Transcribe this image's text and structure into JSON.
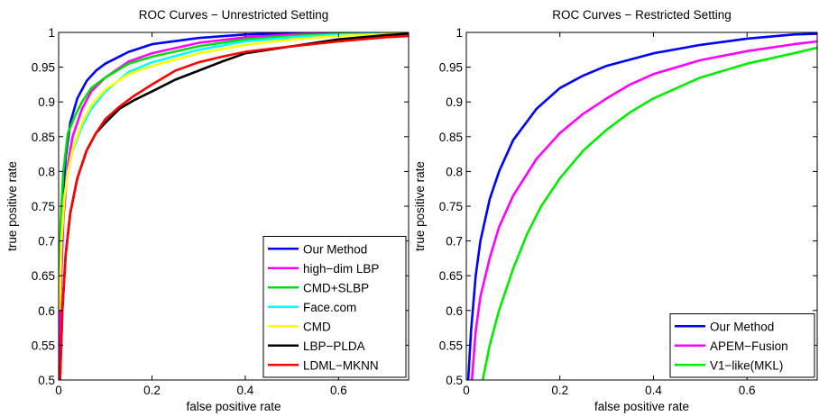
{
  "chart_data": [
    {
      "type": "line",
      "title": "ROC Curves − Unrestricted Setting",
      "xlabel": "false positive rate",
      "ylabel": "true positive rate",
      "xlim": [
        0,
        0.75
      ],
      "ylim": [
        0.5,
        1.0
      ],
      "xticks": [
        0,
        0.2,
        0.4,
        0.6
      ],
      "xtick_labels": [
        "0",
        "0.2",
        "0.4",
        "0.6"
      ],
      "yticks": [
        0.5,
        0.55,
        0.6,
        0.65,
        0.7,
        0.75,
        0.8,
        0.85,
        0.9,
        0.95,
        1.0
      ],
      "ytick_labels": [
        "0.5",
        "0.55",
        "0.6",
        "0.65",
        "0.7",
        "0.75",
        "0.8",
        "0.85",
        "0.9",
        "0.95",
        "1"
      ],
      "grid": false,
      "legend_position": "bottom-right",
      "series": [
        {
          "name": "Our Method",
          "color": "#0000ff",
          "points": [
            [
              0.001,
              0.5
            ],
            [
              0.003,
              0.62
            ],
            [
              0.008,
              0.75
            ],
            [
              0.015,
              0.82
            ],
            [
              0.025,
              0.87
            ],
            [
              0.04,
              0.905
            ],
            [
              0.06,
              0.93
            ],
            [
              0.08,
              0.945
            ],
            [
              0.1,
              0.955
            ],
            [
              0.15,
              0.972
            ],
            [
              0.2,
              0.983
            ],
            [
              0.3,
              0.992
            ],
            [
              0.4,
              0.997
            ],
            [
              0.5,
              0.999
            ],
            [
              0.6,
              1.0
            ],
            [
              0.75,
              1.0
            ]
          ]
        },
        {
          "name": "high−dim LBP",
          "color": "#ff00ff",
          "points": [
            [
              0.001,
              0.5
            ],
            [
              0.004,
              0.62
            ],
            [
              0.01,
              0.73
            ],
            [
              0.02,
              0.81
            ],
            [
              0.03,
              0.85
            ],
            [
              0.05,
              0.89
            ],
            [
              0.07,
              0.915
            ],
            [
              0.1,
              0.935
            ],
            [
              0.15,
              0.958
            ],
            [
              0.2,
              0.97
            ],
            [
              0.3,
              0.985
            ],
            [
              0.4,
              0.993
            ],
            [
              0.5,
              0.997
            ],
            [
              0.6,
              0.999
            ],
            [
              0.75,
              1.0
            ]
          ]
        },
        {
          "name": "CMD+SLBP",
          "color": "#00dd00",
          "points": [
            [
              0.001,
              0.6
            ],
            [
              0.004,
              0.72
            ],
            [
              0.01,
              0.8
            ],
            [
              0.02,
              0.855
            ],
            [
              0.035,
              0.88
            ],
            [
              0.05,
              0.9
            ],
            [
              0.07,
              0.92
            ],
            [
              0.1,
              0.935
            ],
            [
              0.15,
              0.955
            ],
            [
              0.2,
              0.965
            ],
            [
              0.3,
              0.98
            ],
            [
              0.4,
              0.99
            ],
            [
              0.5,
              0.995
            ],
            [
              0.6,
              0.998
            ],
            [
              0.75,
              1.0
            ]
          ]
        },
        {
          "name": "Face.com",
          "color": "#00ffff",
          "points": [
            [
              0.002,
              0.6
            ],
            [
              0.006,
              0.7
            ],
            [
              0.012,
              0.76
            ],
            [
              0.02,
              0.8
            ],
            [
              0.03,
              0.83
            ],
            [
              0.05,
              0.865
            ],
            [
              0.07,
              0.89
            ],
            [
              0.1,
              0.915
            ],
            [
              0.15,
              0.943
            ],
            [
              0.2,
              0.957
            ],
            [
              0.3,
              0.975
            ],
            [
              0.4,
              0.987
            ],
            [
              0.5,
              0.993
            ],
            [
              0.6,
              0.997
            ],
            [
              0.75,
              0.999
            ]
          ]
        },
        {
          "name": "CMD",
          "color": "#ffff00",
          "points": [
            [
              0.002,
              0.6
            ],
            [
              0.006,
              0.7
            ],
            [
              0.012,
              0.76
            ],
            [
              0.02,
              0.8
            ],
            [
              0.03,
              0.832
            ],
            [
              0.05,
              0.87
            ],
            [
              0.07,
              0.895
            ],
            [
              0.1,
              0.918
            ],
            [
              0.15,
              0.94
            ],
            [
              0.2,
              0.952
            ],
            [
              0.3,
              0.97
            ],
            [
              0.4,
              0.982
            ],
            [
              0.5,
              0.99
            ],
            [
              0.6,
              0.995
            ],
            [
              0.75,
              0.999
            ]
          ]
        },
        {
          "name": "LBP−PLDA",
          "color": "#000000",
          "points": [
            [
              0.003,
              0.5
            ],
            [
              0.008,
              0.6
            ],
            [
              0.015,
              0.68
            ],
            [
              0.025,
              0.74
            ],
            [
              0.04,
              0.79
            ],
            [
              0.06,
              0.83
            ],
            [
              0.08,
              0.855
            ],
            [
              0.1,
              0.87
            ],
            [
              0.13,
              0.89
            ],
            [
              0.16,
              0.902
            ],
            [
              0.2,
              0.915
            ],
            [
              0.25,
              0.932
            ],
            [
              0.3,
              0.945
            ],
            [
              0.35,
              0.958
            ],
            [
              0.4,
              0.97
            ],
            [
              0.5,
              0.98
            ],
            [
              0.6,
              0.99
            ],
            [
              0.7,
              0.996
            ],
            [
              0.75,
              0.998
            ]
          ]
        },
        {
          "name": "LDML−MKNN",
          "color": "#ff0000",
          "points": [
            [
              0.003,
              0.5
            ],
            [
              0.008,
              0.6
            ],
            [
              0.015,
              0.68
            ],
            [
              0.025,
              0.74
            ],
            [
              0.04,
              0.79
            ],
            [
              0.06,
              0.83
            ],
            [
              0.08,
              0.855
            ],
            [
              0.1,
              0.875
            ],
            [
              0.13,
              0.893
            ],
            [
              0.16,
              0.908
            ],
            [
              0.2,
              0.925
            ],
            [
              0.25,
              0.945
            ],
            [
              0.3,
              0.957
            ],
            [
              0.35,
              0.965
            ],
            [
              0.4,
              0.972
            ],
            [
              0.5,
              0.98
            ],
            [
              0.6,
              0.987
            ],
            [
              0.7,
              0.993
            ],
            [
              0.75,
              0.995
            ]
          ]
        }
      ]
    },
    {
      "type": "line",
      "title": "ROC Curves − Restricted Setting",
      "xlabel": "false positive rate",
      "ylabel": "true positive rate",
      "xlim": [
        0,
        0.75
      ],
      "ylim": [
        0.5,
        1.0
      ],
      "xticks": [
        0,
        0.2,
        0.4,
        0.6
      ],
      "xtick_labels": [
        "0",
        "0.2",
        "0.4",
        "0.6"
      ],
      "yticks": [
        0.5,
        0.55,
        0.6,
        0.65,
        0.7,
        0.75,
        0.8,
        0.85,
        0.9,
        0.95,
        1.0
      ],
      "ytick_labels": [
        "0.5",
        "0.55",
        "0.6",
        "0.65",
        "0.7",
        "0.75",
        "0.8",
        "0.85",
        "0.9",
        "0.95",
        "1"
      ],
      "grid": false,
      "legend_position": "bottom-right",
      "series": [
        {
          "name": "Our Method",
          "color": "#0000ff",
          "points": [
            [
              0.004,
              0.5
            ],
            [
              0.01,
              0.57
            ],
            [
              0.02,
              0.65
            ],
            [
              0.03,
              0.7
            ],
            [
              0.05,
              0.76
            ],
            [
              0.07,
              0.8
            ],
            [
              0.1,
              0.845
            ],
            [
              0.15,
              0.89
            ],
            [
              0.2,
              0.92
            ],
            [
              0.25,
              0.938
            ],
            [
              0.3,
              0.952
            ],
            [
              0.4,
              0.97
            ],
            [
              0.5,
              0.982
            ],
            [
              0.6,
              0.991
            ],
            [
              0.7,
              0.997
            ],
            [
              0.75,
              0.998
            ]
          ]
        },
        {
          "name": "APEM−Fusion",
          "color": "#ff00ff",
          "points": [
            [
              0.012,
              0.5
            ],
            [
              0.02,
              0.57
            ],
            [
              0.03,
              0.62
            ],
            [
              0.05,
              0.675
            ],
            [
              0.07,
              0.72
            ],
            [
              0.1,
              0.765
            ],
            [
              0.15,
              0.818
            ],
            [
              0.2,
              0.855
            ],
            [
              0.25,
              0.883
            ],
            [
              0.3,
              0.905
            ],
            [
              0.35,
              0.925
            ],
            [
              0.4,
              0.94
            ],
            [
              0.5,
              0.96
            ],
            [
              0.6,
              0.973
            ],
            [
              0.7,
              0.983
            ],
            [
              0.75,
              0.987
            ]
          ]
        },
        {
          "name": "V1−like(MKL)",
          "color": "#00ee00",
          "points": [
            [
              0.035,
              0.5
            ],
            [
              0.05,
              0.55
            ],
            [
              0.07,
              0.6
            ],
            [
              0.1,
              0.66
            ],
            [
              0.13,
              0.71
            ],
            [
              0.16,
              0.75
            ],
            [
              0.2,
              0.79
            ],
            [
              0.25,
              0.83
            ],
            [
              0.3,
              0.86
            ],
            [
              0.35,
              0.885
            ],
            [
              0.4,
              0.905
            ],
            [
              0.5,
              0.935
            ],
            [
              0.6,
              0.955
            ],
            [
              0.7,
              0.97
            ],
            [
              0.75,
              0.978
            ]
          ]
        }
      ]
    }
  ]
}
